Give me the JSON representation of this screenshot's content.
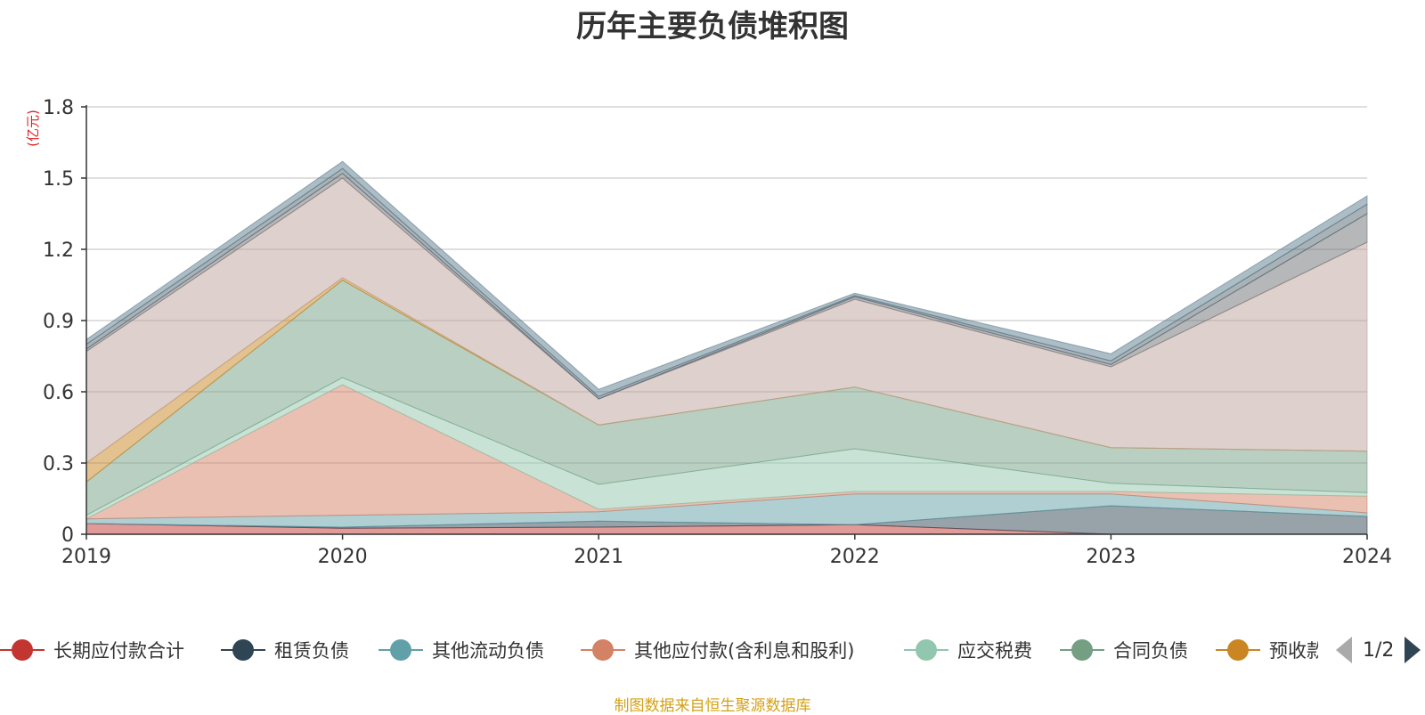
{
  "chart_data": {
    "type": "area",
    "stacked": true,
    "title": "历年主要负债堆积图",
    "ylabel": "(亿元)",
    "ylim": [
      0,
      1.8
    ],
    "yticks": [
      "0",
      "0.3",
      "0.6",
      "0.9",
      "1.2",
      "1.5",
      "1.8"
    ],
    "ytick_values": [
      0,
      0.3,
      0.6,
      0.9,
      1.2,
      1.5,
      1.8
    ],
    "categories": [
      "2019",
      "2020",
      "2021",
      "2022",
      "2023",
      "2024"
    ],
    "grid": true,
    "legend_position": "bottom",
    "series": [
      {
        "name": "长期应付款合计",
        "color": "#c23531",
        "values": [
          0.045,
          0.025,
          0.03,
          0.04,
          0.0,
          0.0
        ]
      },
      {
        "name": "租赁负债",
        "color": "#2f4554",
        "values": [
          0.0,
          0.005,
          0.025,
          0.0,
          0.12,
          0.075
        ]
      },
      {
        "name": "其他流动负债",
        "color": "#61a0a8",
        "values": [
          0.02,
          0.05,
          0.04,
          0.13,
          0.05,
          0.015
        ]
      },
      {
        "name": "其他应付款(含利息和股利)",
        "color": "#d48265",
        "values": [
          0.0,
          0.55,
          0.01,
          0.01,
          0.01,
          0.07
        ]
      },
      {
        "name": "应交税费",
        "color": "#91c7ae",
        "values": [
          0.015,
          0.03,
          0.105,
          0.18,
          0.035,
          0.015
        ]
      },
      {
        "name": "合同负债",
        "color": "#749f83",
        "values": [
          0.14,
          0.41,
          0.25,
          0.26,
          0.15,
          0.175
        ]
      },
      {
        "name": "预收款项",
        "color": "#ca8622",
        "values": [
          0.08,
          0.01,
          0.0,
          0.0,
          0.0,
          0.0
        ]
      },
      {
        "name": "",
        "color": "#bda29a",
        "values": [
          0.47,
          0.42,
          0.11,
          0.37,
          0.34,
          0.88
        ]
      },
      {
        "name": "",
        "color": "#6e7074",
        "values": [
          0.01,
          0.02,
          0.0,
          0.01,
          0.01,
          0.12
        ]
      },
      {
        "name": "",
        "color": "#546570",
        "values": [
          0.02,
          0.02,
          0.01,
          0.005,
          0.015,
          0.04
        ]
      },
      {
        "name": "",
        "color": "#5c7b8c",
        "values": [
          0.02,
          0.03,
          0.03,
          0.01,
          0.03,
          0.035
        ]
      }
    ]
  },
  "legend": {
    "items": [
      {
        "label": "长期应付款合计",
        "color": "#c23531"
      },
      {
        "label": "租赁负债",
        "color": "#2f4554"
      },
      {
        "label": "其他流动负债",
        "color": "#61a0a8"
      },
      {
        "label": "其他应付款(含利息和股利)",
        "color": "#d48265"
      },
      {
        "label": "应交税费",
        "color": "#91c7ae"
      },
      {
        "label": "合同负债",
        "color": "#749f83"
      },
      {
        "label": "预收款项",
        "color": "#ca8622"
      }
    ],
    "page": "1/2"
  },
  "source_note": "制图数据来自恒生聚源数据库"
}
